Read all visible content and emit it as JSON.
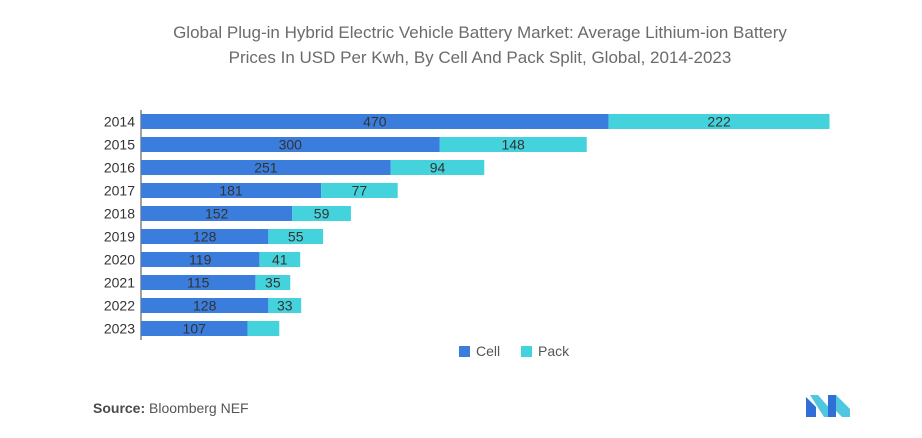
{
  "title_line1": "Global Plug-in Hybrid Electric Vehicle Battery Market: Average Lithium-ion Battery",
  "title_line2": "Prices In USD Per Kwh, By Cell And Pack Split, Global, 2014-2023",
  "source_label": "Source:",
  "source_value": "Bloomberg NEF",
  "colors": {
    "cell": "#3b7ddd",
    "pack": "#44d3dc",
    "label": "#333333",
    "axis": "#444444"
  },
  "chart_data": {
    "type": "bar",
    "orientation": "horizontal",
    "stacked": true,
    "categories": [
      "2014",
      "2015",
      "2016",
      "2017",
      "2018",
      "2019",
      "2020",
      "2021",
      "2022",
      "2023"
    ],
    "series": [
      {
        "name": "Cell",
        "values": [
          470,
          300,
          251,
          181,
          152,
          128,
          119,
          115,
          128,
          107
        ]
      },
      {
        "name": "Pack",
        "values": [
          222,
          148,
          94,
          77,
          59,
          55,
          41,
          35,
          33,
          32
        ]
      }
    ],
    "data_labels": {
      "Cell": [
        "470",
        "300",
        "251",
        "181",
        "152",
        "128",
        "119",
        "115",
        "128",
        "107"
      ],
      "Pack": [
        "222",
        "148",
        "94",
        "77",
        "59",
        "55",
        "41",
        "35",
        "33",
        ""
      ]
    },
    "legend_position": "bottom",
    "grid": false
  }
}
